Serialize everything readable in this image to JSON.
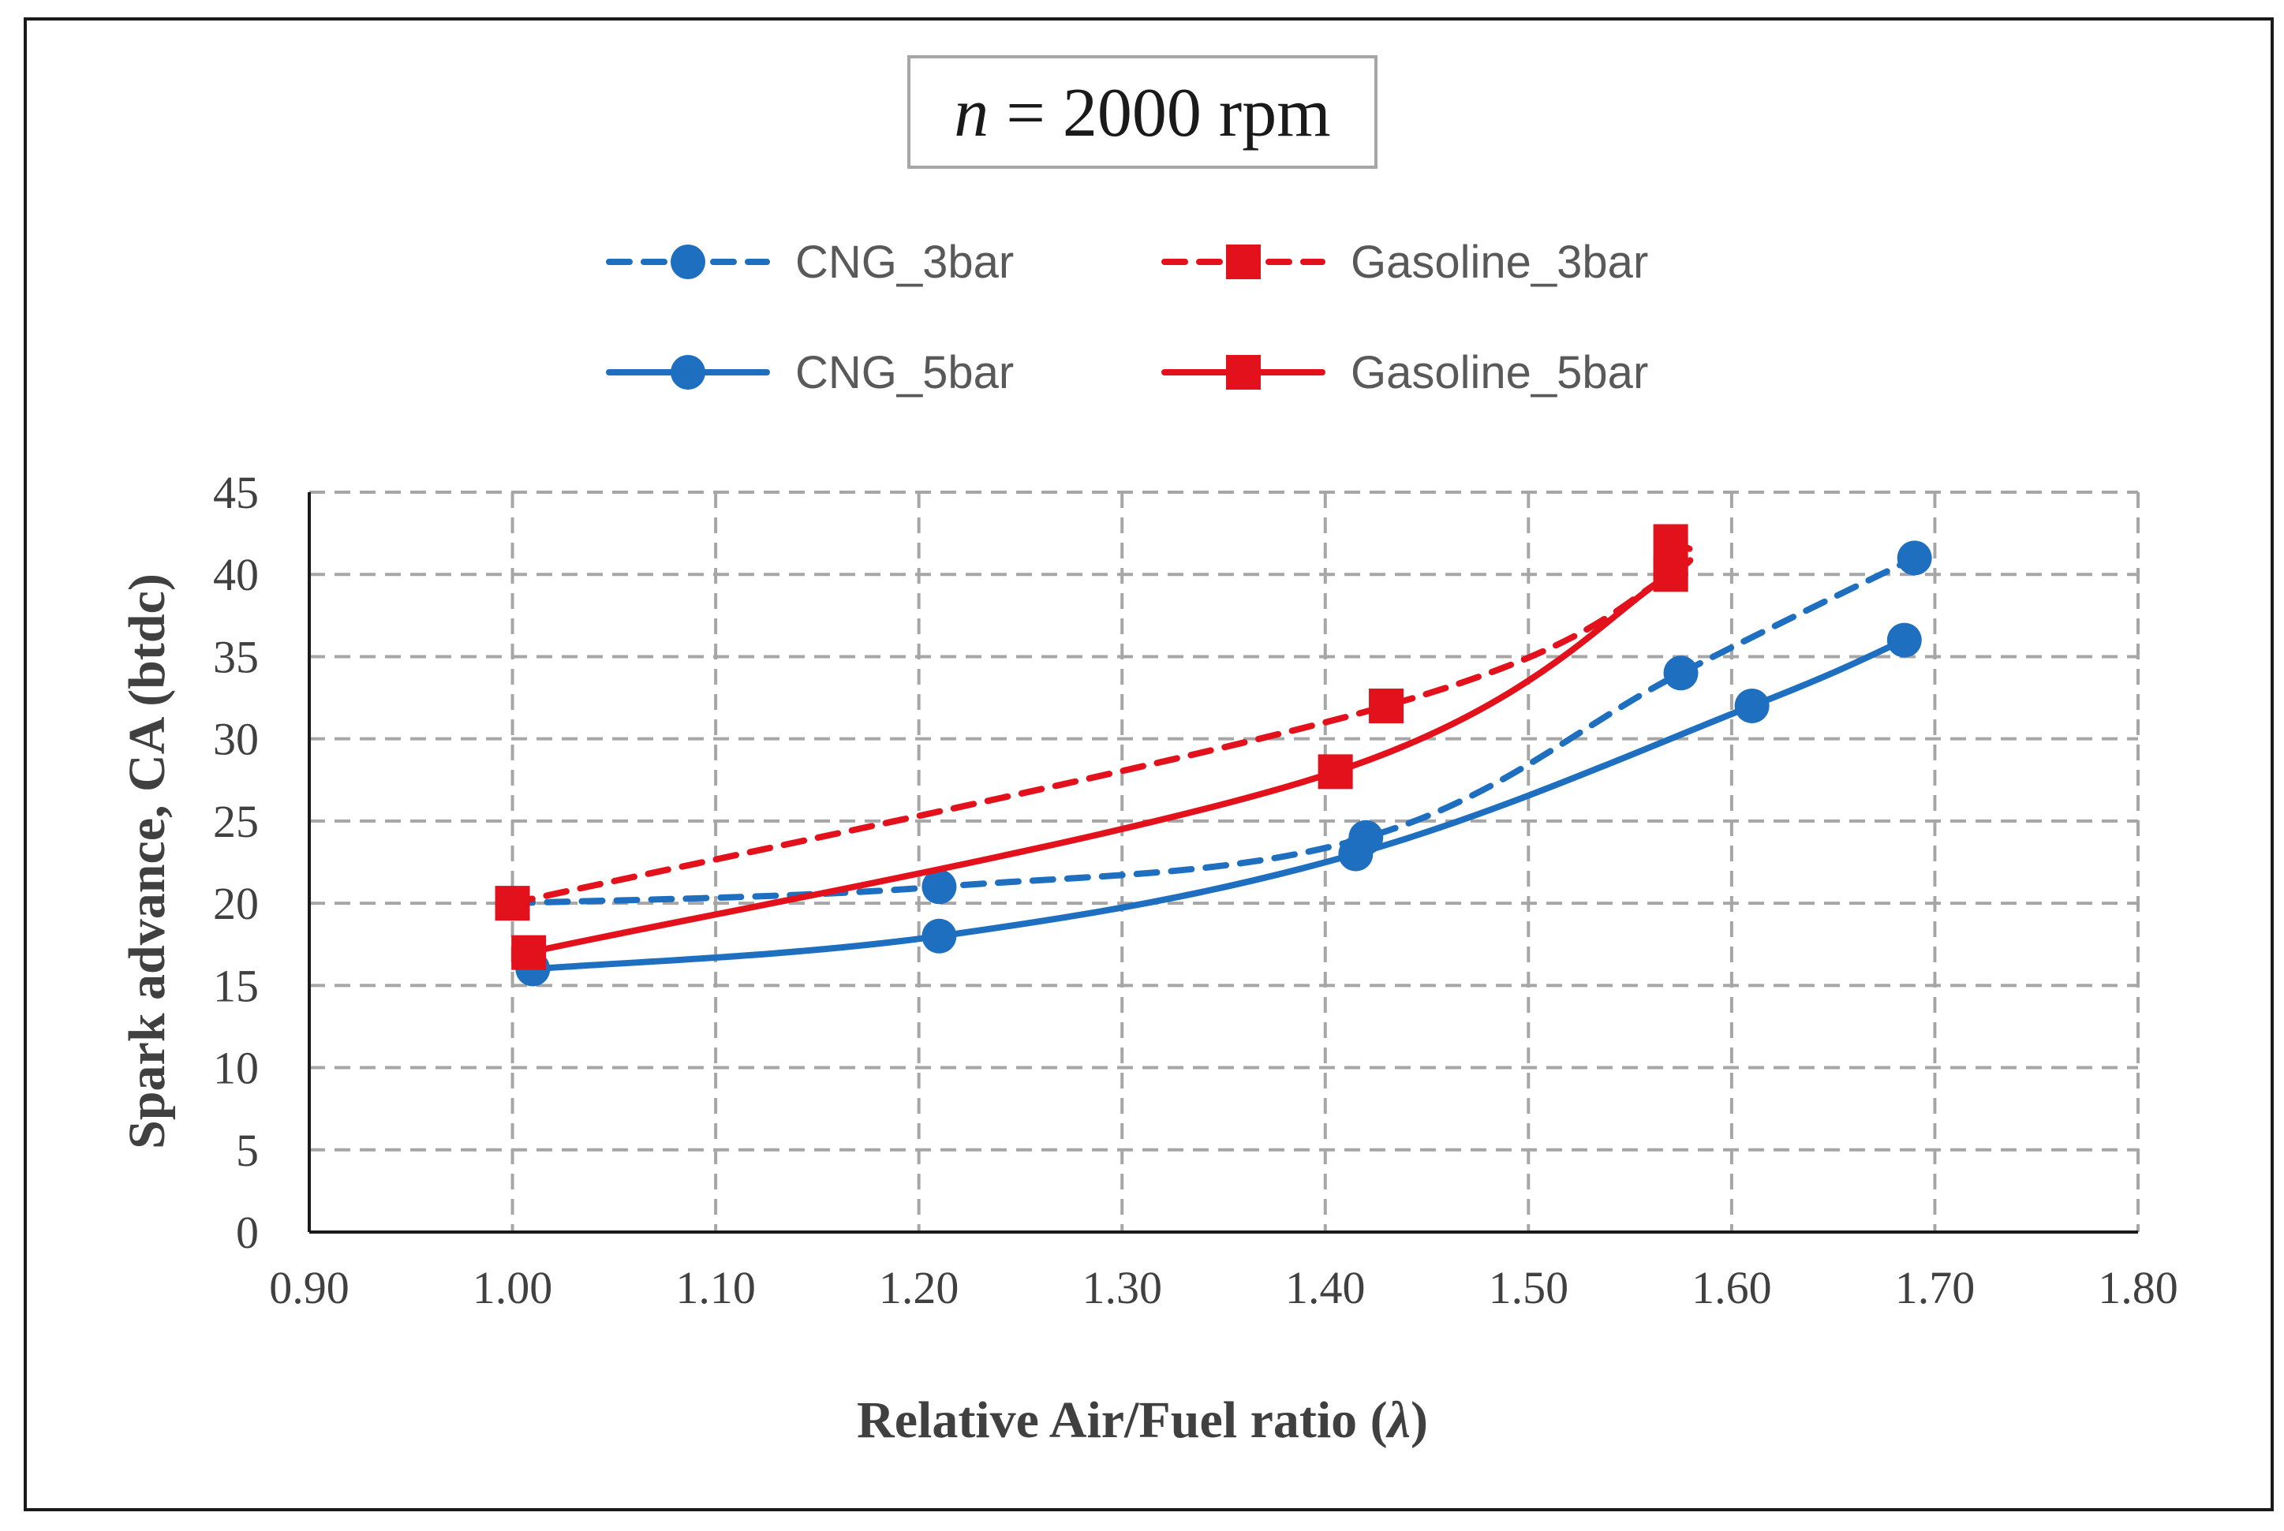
{
  "title_prefix": "n",
  "title_rest": " = 2000 rpm",
  "chart_data": {
    "type": "line",
    "title": "n = 2000 rpm",
    "xlabel_prefix": "Relative Air/Fuel ratio (",
    "xlabel_symbol": "λ",
    "xlabel_suffix": ")",
    "ylabel": "Spark advance, CA (btdc)",
    "xlim": [
      0.9,
      1.8
    ],
    "ylim": [
      0,
      45
    ],
    "x_ticks": [
      "0.90",
      "1.00",
      "1.10",
      "1.20",
      "1.30",
      "1.40",
      "1.50",
      "1.60",
      "1.70",
      "1.80"
    ],
    "y_ticks": [
      "0",
      "5",
      "10",
      "15",
      "20",
      "25",
      "30",
      "35",
      "40",
      "45"
    ],
    "grid": true,
    "legend_position": "top",
    "series": [
      {
        "name": "CNG_3bar",
        "color": "#1f6fc0",
        "dash": "dashed",
        "marker": "circle",
        "x": [
          1.0,
          1.21,
          1.42,
          1.575,
          1.69
        ],
        "y": [
          20,
          21,
          24,
          34,
          41
        ]
      },
      {
        "name": "Gasoline_3bar",
        "color": "#e3111b",
        "dash": "dashed",
        "marker": "square",
        "x": [
          1.0,
          1.43,
          1.57,
          1.57
        ],
        "y": [
          20,
          32,
          40,
          42
        ]
      },
      {
        "name": "CNG_5bar",
        "color": "#1f6fc0",
        "dash": "solid",
        "marker": "circle",
        "x": [
          1.01,
          1.21,
          1.415,
          1.61,
          1.685
        ],
        "y": [
          16,
          18,
          23,
          32,
          36
        ]
      },
      {
        "name": "Gasoline_5bar",
        "color": "#e3111b",
        "dash": "solid",
        "marker": "square",
        "x": [
          1.008,
          1.405,
          1.57
        ],
        "y": [
          17,
          28,
          40
        ]
      }
    ]
  }
}
